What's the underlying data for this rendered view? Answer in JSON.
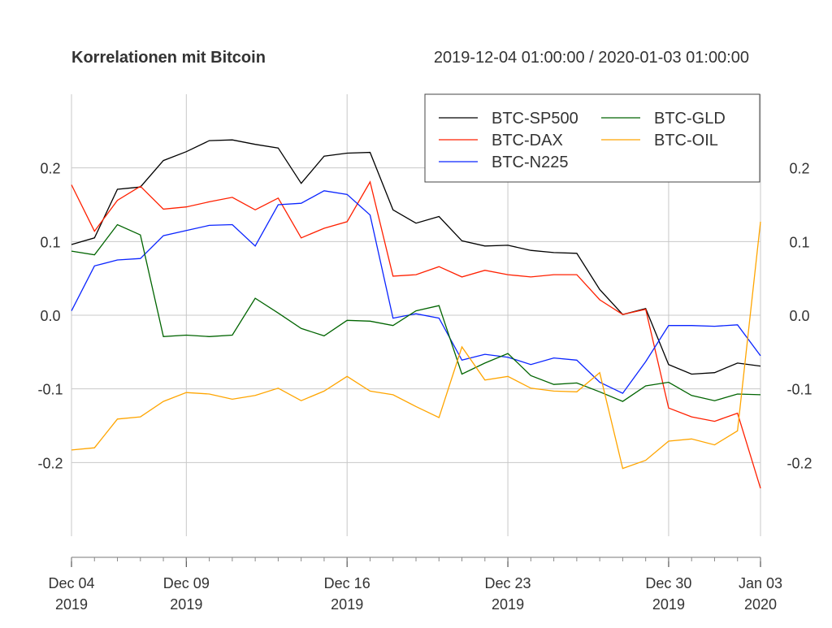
{
  "chart_data": {
    "type": "line",
    "title": "Korrelationen mit Bitcoin",
    "subtitle": "2019-12-04 01:00:00 / 2020-01-03 01:00:00",
    "xlabel": "",
    "ylabel": "",
    "ylim": [
      -0.3,
      0.3
    ],
    "yticks": [
      "0.2",
      "0.1",
      "0.0",
      "-0.1",
      "-0.2"
    ],
    "ytick_values": [
      0.2,
      0.1,
      0.0,
      -0.1,
      -0.2
    ],
    "xtick_labels": [
      {
        "day": 0,
        "line1": "Dec 04",
        "line2": "2019"
      },
      {
        "day": 5,
        "line1": "Dec 09",
        "line2": "2019"
      },
      {
        "day": 12,
        "line1": "Dec 16",
        "line2": "2019"
      },
      {
        "day": 19,
        "line1": "Dec 23",
        "line2": "2019"
      },
      {
        "day": 26,
        "line1": "Dec 30",
        "line2": "2019"
      },
      {
        "day": 30,
        "line1": "Jan 03",
        "line2": "2020"
      }
    ],
    "x": [
      "2019-12-04",
      "2019-12-05",
      "2019-12-06",
      "2019-12-07",
      "2019-12-08",
      "2019-12-09",
      "2019-12-10",
      "2019-12-11",
      "2019-12-12",
      "2019-12-13",
      "2019-12-14",
      "2019-12-15",
      "2019-12-16",
      "2019-12-17",
      "2019-12-18",
      "2019-12-19",
      "2019-12-20",
      "2019-12-21",
      "2019-12-22",
      "2019-12-23",
      "2019-12-24",
      "2019-12-25",
      "2019-12-26",
      "2019-12-27",
      "2019-12-28",
      "2019-12-29",
      "2019-12-30",
      "2019-12-31",
      "2020-01-01",
      "2020-01-02",
      "2020-01-03"
    ],
    "grid": true,
    "legend_position": "top-right",
    "series": [
      {
        "name": "BTC-SP500",
        "color": "#000000",
        "values": [
          0.096,
          0.105,
          0.171,
          0.174,
          0.21,
          0.222,
          0.237,
          0.238,
          0.232,
          0.227,
          0.179,
          0.216,
          0.22,
          0.221,
          0.143,
          0.125,
          0.134,
          0.101,
          0.094,
          0.095,
          0.088,
          0.085,
          0.084,
          0.035,
          0.001,
          0.009,
          -0.067,
          -0.08,
          -0.078,
          -0.065,
          -0.069
        ]
      },
      {
        "name": "BTC-DAX",
        "color": "#ff2000",
        "values": [
          0.177,
          0.114,
          0.156,
          0.175,
          0.144,
          0.147,
          0.154,
          0.16,
          0.143,
          0.159,
          0.105,
          0.118,
          0.127,
          0.181,
          0.053,
          0.055,
          0.066,
          0.052,
          0.061,
          0.055,
          0.052,
          0.055,
          0.055,
          0.021,
          0.001,
          0.008,
          -0.126,
          -0.138,
          -0.144,
          -0.133,
          -0.235
        ]
      },
      {
        "name": "BTC-N225",
        "color": "#0a24ff",
        "values": [
          0.006,
          0.067,
          0.075,
          0.077,
          0.108,
          0.115,
          0.122,
          0.123,
          0.094,
          0.15,
          0.152,
          0.169,
          0.164,
          0.136,
          -0.004,
          0.002,
          -0.004,
          -0.061,
          -0.053,
          -0.057,
          -0.067,
          -0.058,
          -0.061,
          -0.091,
          -0.106,
          -0.063,
          -0.014,
          -0.014,
          -0.015,
          -0.013,
          -0.055
        ]
      },
      {
        "name": "BTC-GLD",
        "color": "#006400",
        "values": [
          0.087,
          0.082,
          0.123,
          0.109,
          -0.029,
          -0.027,
          -0.029,
          -0.027,
          0.023,
          0.003,
          -0.018,
          -0.028,
          -0.007,
          -0.008,
          -0.014,
          0.006,
          0.013,
          -0.08,
          -0.065,
          -0.052,
          -0.082,
          -0.094,
          -0.092,
          -0.104,
          -0.117,
          -0.096,
          -0.091,
          -0.109,
          -0.116,
          -0.107,
          -0.108
        ]
      },
      {
        "name": "BTC-OIL",
        "color": "#ffa500",
        "values": [
          -0.183,
          -0.18,
          -0.141,
          -0.138,
          -0.117,
          -0.105,
          -0.107,
          -0.114,
          -0.109,
          -0.099,
          -0.116,
          -0.103,
          -0.083,
          -0.103,
          -0.108,
          -0.124,
          -0.139,
          -0.043,
          -0.088,
          -0.083,
          -0.099,
          -0.103,
          -0.104,
          -0.078,
          -0.208,
          -0.197,
          -0.171,
          -0.168,
          -0.176,
          -0.157,
          0.127
        ]
      }
    ]
  }
}
